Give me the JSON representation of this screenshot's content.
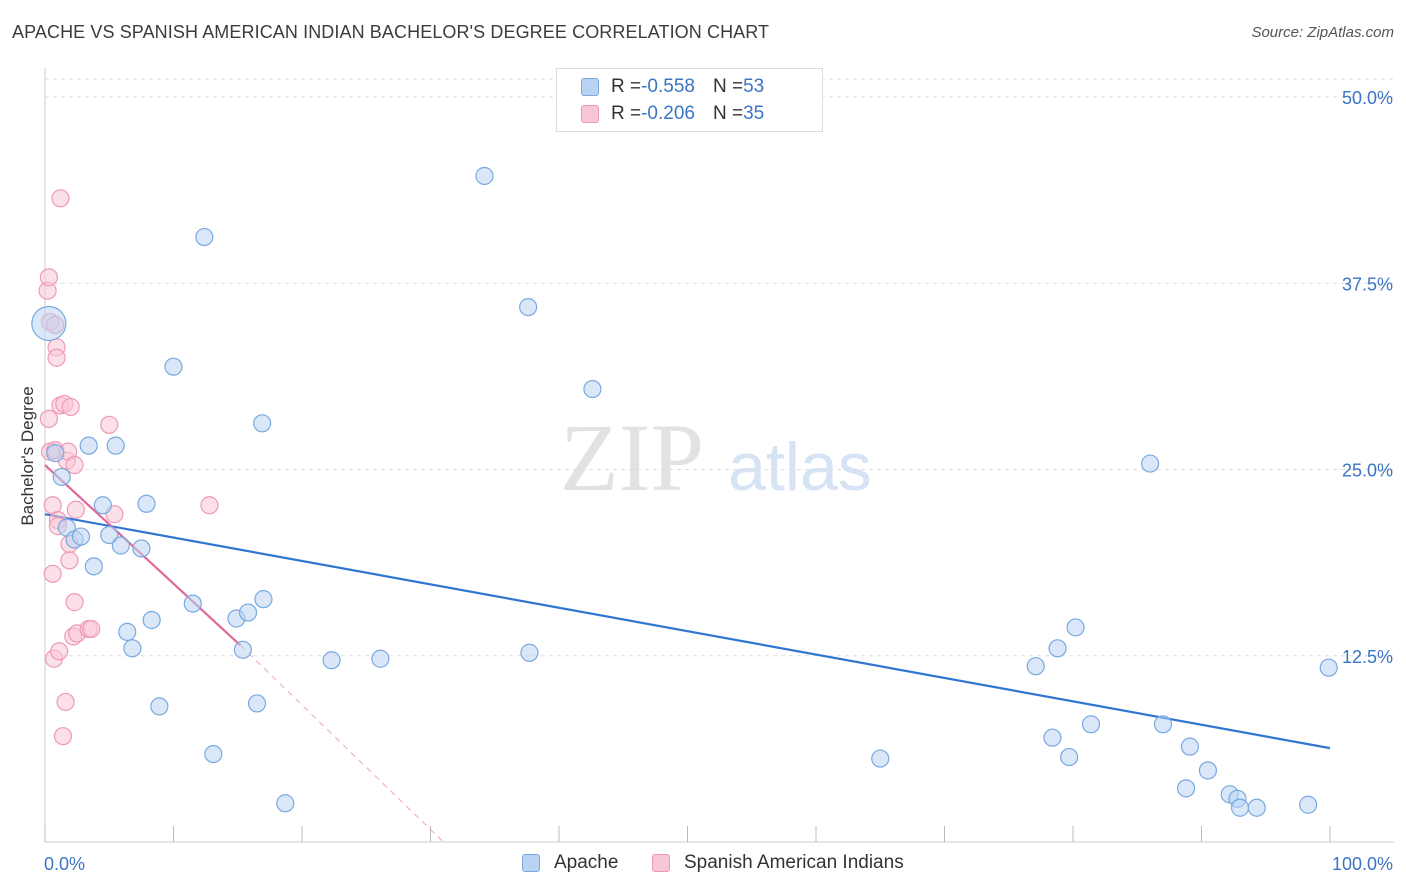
{
  "title": "APACHE VS SPANISH AMERICAN INDIAN BACHELOR'S DEGREE CORRELATION CHART",
  "source": "Source: ZipAtlas.com",
  "watermark": {
    "zip": "ZIP",
    "atlas": "atlas"
  },
  "colors": {
    "apache_fill": "#b9d3f3",
    "apache_stroke": "#7aa9e0",
    "apache_line": "#2f76d2",
    "spanish_fill": "#f9c6d6",
    "spanish_stroke": "#ee9ab5",
    "spanish_line": "#e0689a",
    "grid": "#dddddd",
    "tick_label": "#3a75c4"
  },
  "legend": {
    "apache": {
      "r_label": "R = ",
      "r_value": "-0.558",
      "n_label": "N = ",
      "n_value": "53"
    },
    "spanish": {
      "r_label": "R = ",
      "r_value": "-0.206",
      "n_label": "N = ",
      "n_value": "35"
    }
  },
  "bottom_legend": {
    "apache": "Apache",
    "spanish": "Spanish American Indians"
  },
  "chart_data": {
    "type": "scatter",
    "title": "APACHE VS SPANISH AMERICAN INDIAN BACHELOR'S DEGREE CORRELATION CHART",
    "xlabel": "",
    "ylabel": "Bachelor's Degree",
    "xlim": [
      0,
      100
    ],
    "ylim": [
      0,
      50
    ],
    "x_tick_labels": [
      "0.0%",
      "100.0%"
    ],
    "y_ticks": [
      12.5,
      25.0,
      37.5,
      50.0
    ],
    "y_tick_labels": [
      "12.5%",
      "25.0%",
      "37.5%",
      "50.0%"
    ],
    "grid": true,
    "series": [
      {
        "name": "Apache",
        "points": [
          [
            0.3,
            34.8
          ],
          [
            0.8,
            26.1
          ],
          [
            1.3,
            24.5
          ],
          [
            1.7,
            21.1
          ],
          [
            2.3,
            20.3
          ],
          [
            2.8,
            20.5
          ],
          [
            3.4,
            26.6
          ],
          [
            3.8,
            18.5
          ],
          [
            4.5,
            22.6
          ],
          [
            5.0,
            20.6
          ],
          [
            5.5,
            26.6
          ],
          [
            5.9,
            19.9
          ],
          [
            6.4,
            14.1
          ],
          [
            6.8,
            13.0
          ],
          [
            7.5,
            19.7
          ],
          [
            7.9,
            22.7
          ],
          [
            8.3,
            14.9
          ],
          [
            8.9,
            9.1
          ],
          [
            10.0,
            31.9
          ],
          [
            11.5,
            16.0
          ],
          [
            12.4,
            40.6
          ],
          [
            13.1,
            5.9
          ],
          [
            14.9,
            15.0
          ],
          [
            15.4,
            12.9
          ],
          [
            15.8,
            15.4
          ],
          [
            16.5,
            9.3
          ],
          [
            16.9,
            28.1
          ],
          [
            17.0,
            16.3
          ],
          [
            18.7,
            2.6
          ],
          [
            22.3,
            12.2
          ],
          [
            26.1,
            12.3
          ],
          [
            34.2,
            44.7
          ],
          [
            37.6,
            35.9
          ],
          [
            37.7,
            12.7
          ],
          [
            42.6,
            30.4
          ],
          [
            65.0,
            5.6
          ],
          [
            77.1,
            11.8
          ],
          [
            78.4,
            7.0
          ],
          [
            78.8,
            13.0
          ],
          [
            79.7,
            5.7
          ],
          [
            80.2,
            14.4
          ],
          [
            81.4,
            7.9
          ],
          [
            86.0,
            25.4
          ],
          [
            87.0,
            7.9
          ],
          [
            88.8,
            3.6
          ],
          [
            89.1,
            6.4
          ],
          [
            90.5,
            4.8
          ],
          [
            92.2,
            3.2
          ],
          [
            92.8,
            2.9
          ],
          [
            93.0,
            2.3
          ],
          [
            94.3,
            2.3
          ],
          [
            98.3,
            2.5
          ],
          [
            99.9,
            11.7
          ]
        ]
      },
      {
        "name": "Spanish American Indians",
        "points": [
          [
            0.2,
            37.0
          ],
          [
            0.3,
            37.9
          ],
          [
            0.4,
            34.9
          ],
          [
            0.3,
            28.4
          ],
          [
            0.4,
            26.2
          ],
          [
            0.8,
            26.3
          ],
          [
            0.6,
            22.6
          ],
          [
            0.6,
            18.0
          ],
          [
            0.7,
            12.3
          ],
          [
            0.9,
            33.2
          ],
          [
            0.9,
            32.5
          ],
          [
            1.0,
            21.6
          ],
          [
            1.0,
            21.2
          ],
          [
            1.2,
            43.2
          ],
          [
            1.2,
            29.3
          ],
          [
            1.1,
            12.8
          ],
          [
            1.4,
            7.1
          ],
          [
            1.5,
            29.4
          ],
          [
            1.6,
            9.4
          ],
          [
            1.7,
            25.6
          ],
          [
            1.8,
            26.2
          ],
          [
            1.9,
            20.0
          ],
          [
            1.9,
            18.9
          ],
          [
            2.0,
            29.2
          ],
          [
            2.2,
            13.8
          ],
          [
            2.3,
            25.3
          ],
          [
            2.3,
            16.1
          ],
          [
            2.4,
            22.3
          ],
          [
            2.5,
            14.0
          ],
          [
            3.4,
            14.3
          ],
          [
            3.6,
            14.3
          ],
          [
            5.0,
            28.0
          ],
          [
            5.4,
            22.0
          ],
          [
            12.8,
            22.6
          ],
          [
            0.8,
            34.7
          ]
        ]
      }
    ],
    "trendlines": [
      {
        "series": "Apache",
        "x": [
          0,
          100
        ],
        "y": [
          22.0,
          6.3
        ],
        "style": "solid"
      },
      {
        "series": "Spanish American Indians",
        "x": [
          0,
          15.2
        ],
        "y": [
          25.3,
          13.2
        ],
        "style": "solid"
      },
      {
        "series": "Spanish American Indians",
        "x": [
          15.2,
          31.0
        ],
        "y": [
          13.2,
          0.0
        ],
        "style": "dashed"
      }
    ]
  }
}
